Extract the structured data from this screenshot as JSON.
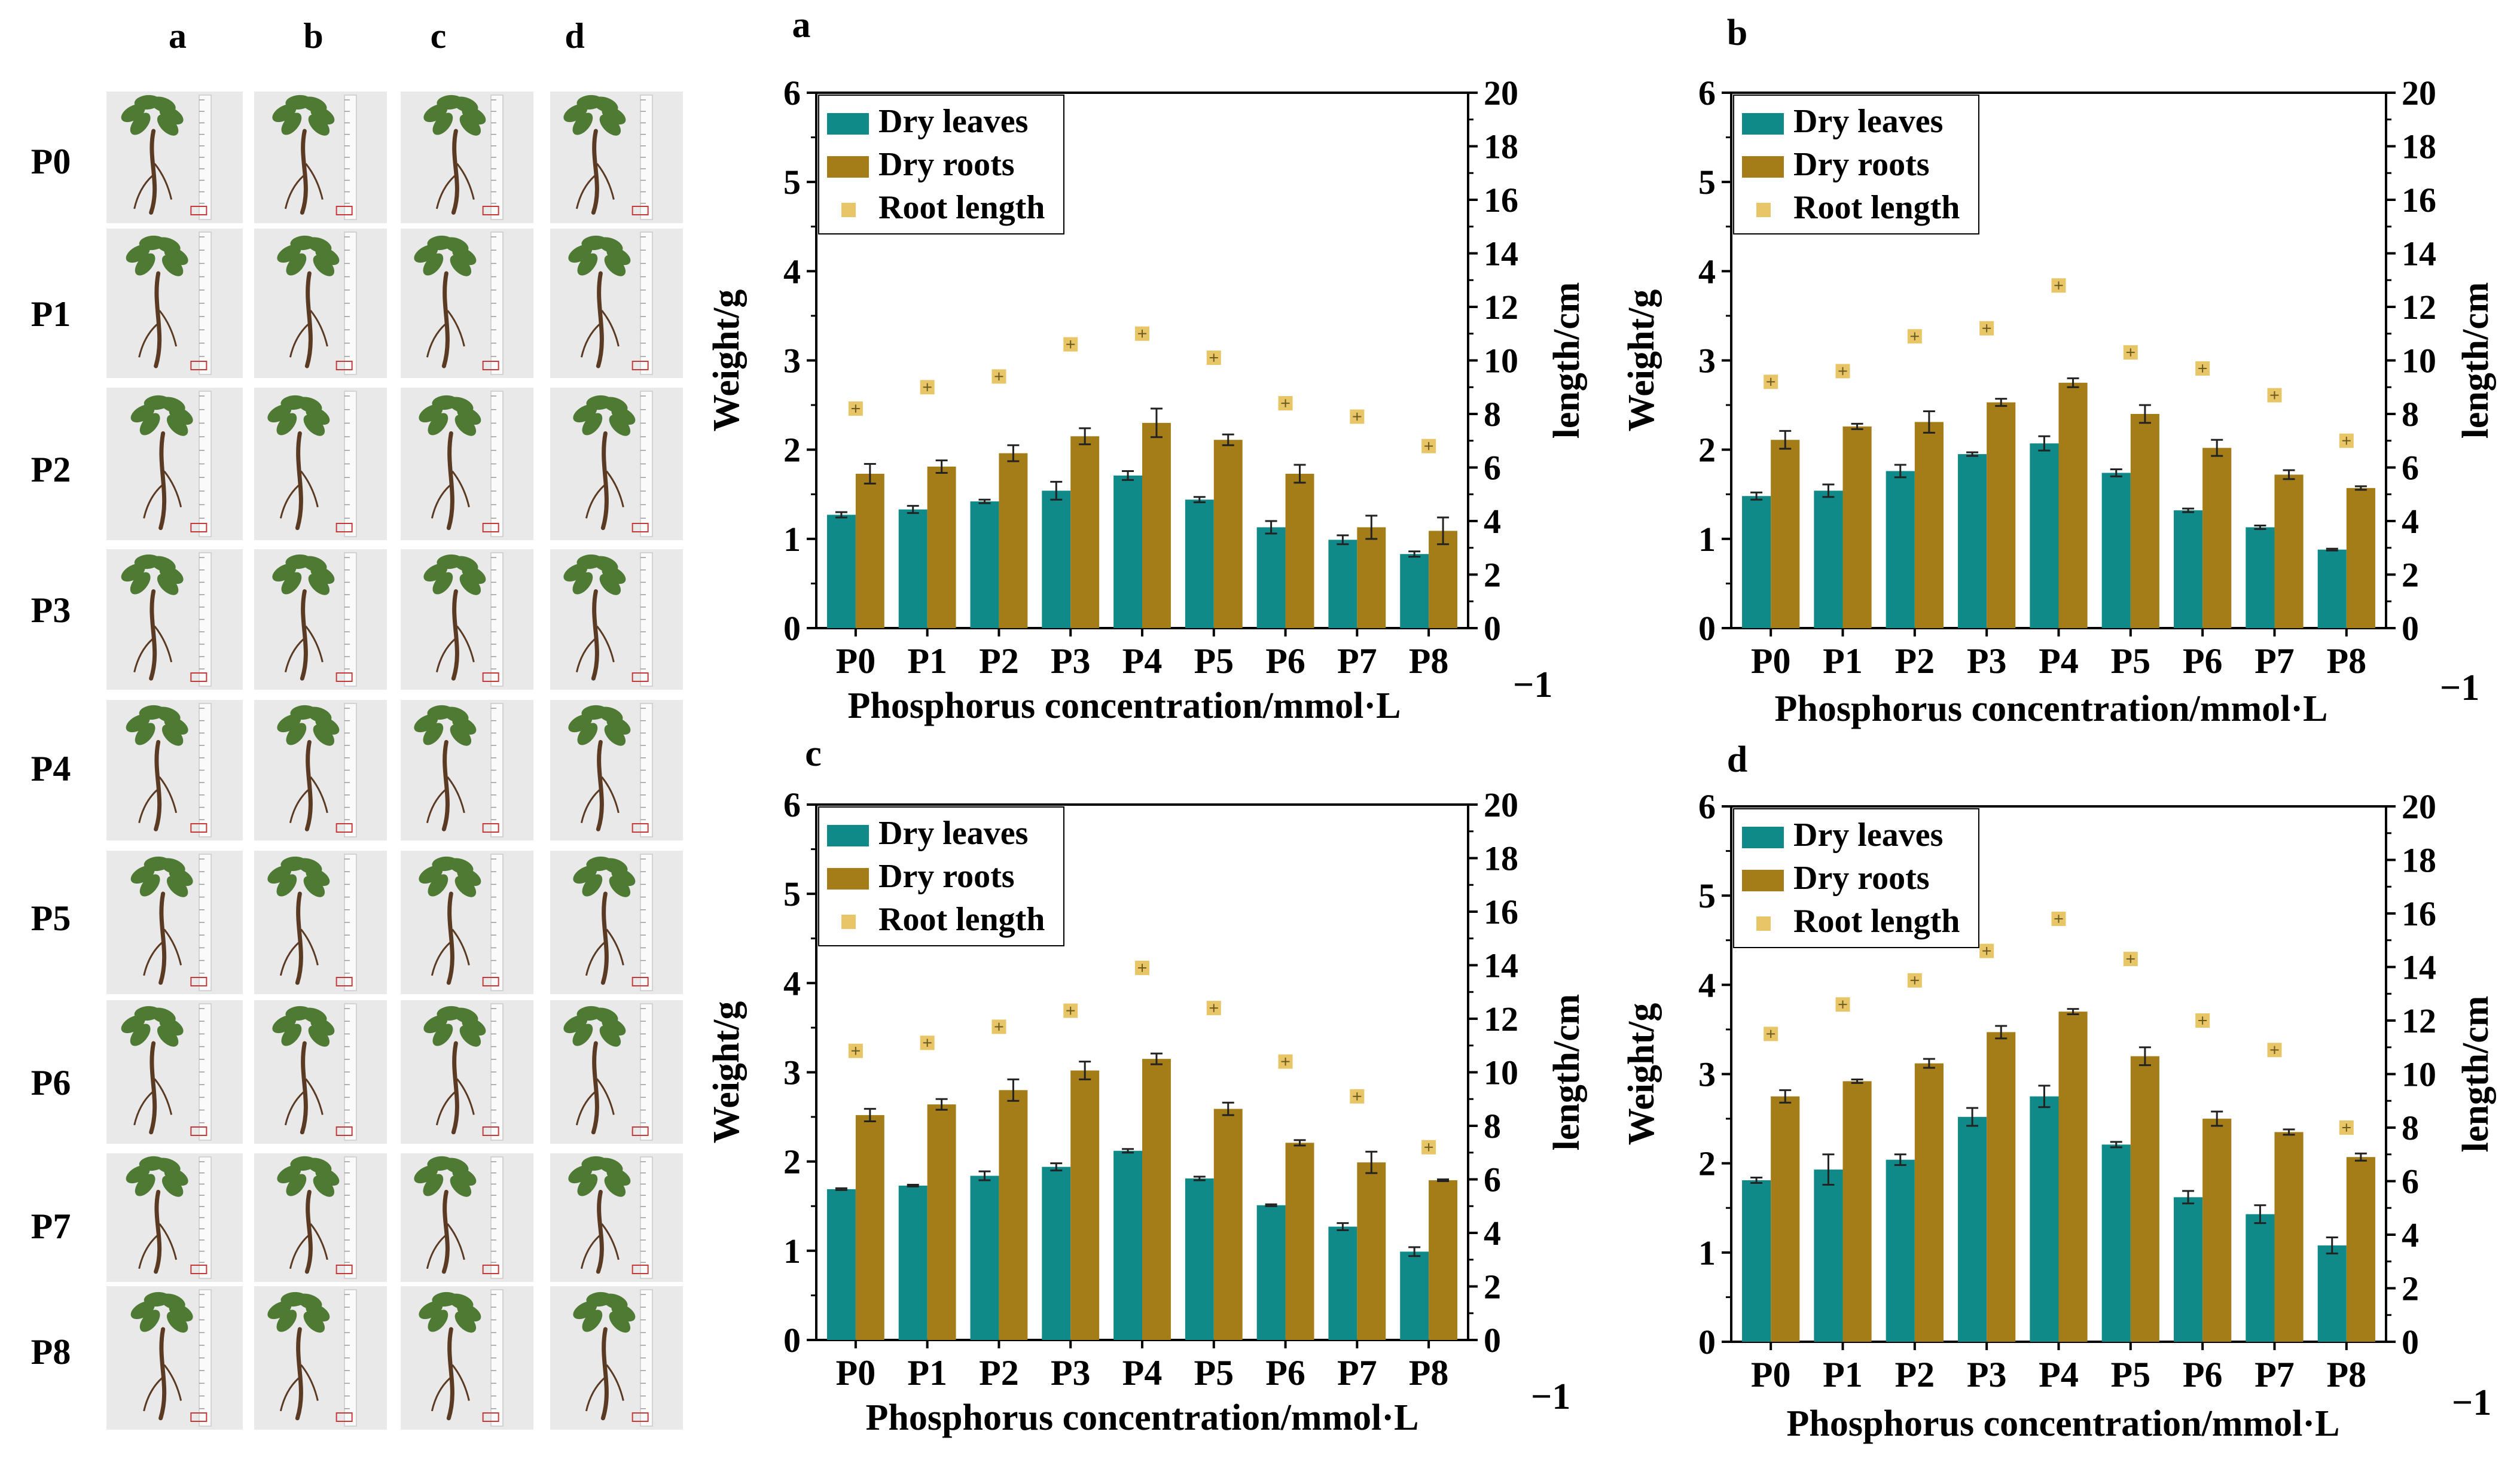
{
  "photo_grid": {
    "column_labels": [
      "a",
      "b",
      "c",
      "d"
    ],
    "row_labels": [
      "P0",
      "P1",
      "P2",
      "P3",
      "P4",
      "P5",
      "P6",
      "P7",
      "P8"
    ]
  },
  "colors": {
    "dry_leaves": "#0f8a88",
    "dry_roots": "#a47c18",
    "root_length": "#e8c668",
    "error_bar": "#222222",
    "photo_bg": "#e9e9ea",
    "stem": "#5a3a22",
    "leaf": "#4f7a34"
  },
  "chart_data": [
    {
      "type": "bar",
      "panel": "a",
      "categories": [
        "P0",
        "P1",
        "P2",
        "P3",
        "P4",
        "P5",
        "P6",
        "P7",
        "P8"
      ],
      "xlabel": "Phosphorus concentration/mmol·L",
      "xlabel_exponent": "−1",
      "ylabel": "Weight/g",
      "ylabel_right": "length/cm",
      "ylim": [
        0,
        6
      ],
      "yticks": [
        "0",
        "1",
        "2",
        "3",
        "4",
        "5",
        "6"
      ],
      "ylim_right": [
        0,
        20
      ],
      "yticks_right": [
        "0",
        "2",
        "4",
        "6",
        "8",
        "10",
        "12",
        "14",
        "16",
        "18",
        "20"
      ],
      "legend": [
        "Dry leaves",
        "Dry roots",
        "Root length"
      ],
      "series": [
        {
          "name": "Dry leaves",
          "axis": "left",
          "values": [
            1.27,
            1.33,
            1.42,
            1.54,
            1.71,
            1.44,
            1.13,
            0.99,
            0.83
          ],
          "errors": [
            0.03,
            0.04,
            0.02,
            0.1,
            0.05,
            0.03,
            0.07,
            0.05,
            0.03
          ]
        },
        {
          "name": "Dry roots",
          "axis": "left",
          "values": [
            1.73,
            1.81,
            1.96,
            2.15,
            2.3,
            2.11,
            1.73,
            1.13,
            1.09
          ],
          "errors": [
            0.11,
            0.07,
            0.09,
            0.09,
            0.16,
            0.06,
            0.1,
            0.13,
            0.15
          ]
        },
        {
          "name": "Root length",
          "axis": "right",
          "values": [
            8.2,
            9.0,
            9.4,
            10.6,
            11.0,
            10.1,
            8.4,
            7.9,
            6.8
          ],
          "errors": [
            0.15,
            0.15,
            0.15,
            0.15,
            0.15,
            0.15,
            0.15,
            0.15,
            0.15
          ]
        }
      ]
    },
    {
      "type": "bar",
      "panel": "b",
      "categories": [
        "P0",
        "P1",
        "P2",
        "P3",
        "P4",
        "P5",
        "P6",
        "P7",
        "P8"
      ],
      "xlabel": "Phosphorus concentration/mmol·L",
      "xlabel_exponent": "−1",
      "ylabel": "Weight/g",
      "ylabel_right": "length/cm",
      "ylim": [
        0,
        6
      ],
      "yticks": [
        "0",
        "1",
        "2",
        "3",
        "4",
        "5",
        "6"
      ],
      "ylim_right": [
        0,
        20
      ],
      "yticks_right": [
        "0",
        "2",
        "4",
        "6",
        "8",
        "10",
        "12",
        "14",
        "16",
        "18",
        "20"
      ],
      "legend": [
        "Dry leaves",
        "Dry roots",
        "Root length"
      ],
      "series": [
        {
          "name": "Dry leaves",
          "axis": "left",
          "values": [
            1.48,
            1.54,
            1.76,
            1.95,
            2.07,
            1.74,
            1.32,
            1.13,
            0.88
          ],
          "errors": [
            0.04,
            0.07,
            0.07,
            0.02,
            0.08,
            0.04,
            0.02,
            0.02,
            0.01
          ]
        },
        {
          "name": "Dry roots",
          "axis": "left",
          "values": [
            2.11,
            2.26,
            2.31,
            2.53,
            2.75,
            2.4,
            2.02,
            1.72,
            1.57
          ],
          "errors": [
            0.1,
            0.03,
            0.12,
            0.04,
            0.05,
            0.1,
            0.09,
            0.05,
            0.02
          ]
        },
        {
          "name": "Root length",
          "axis": "right",
          "values": [
            9.2,
            9.6,
            10.9,
            11.2,
            12.8,
            10.3,
            9.7,
            8.7,
            7.0
          ],
          "errors": [
            0.15,
            0.15,
            0.15,
            0.15,
            0.15,
            0.15,
            0.15,
            0.15,
            0.15
          ]
        }
      ]
    },
    {
      "type": "bar",
      "panel": "c",
      "categories": [
        "P0",
        "P1",
        "P2",
        "P3",
        "P4",
        "P5",
        "P6",
        "P7",
        "P8"
      ],
      "xlabel": "Phosphorus concentration/mmol·L",
      "xlabel_exponent": "−1",
      "ylabel": "Weight/g",
      "ylabel_right": "length/cm",
      "ylim": [
        0,
        6
      ],
      "yticks": [
        "0",
        "1",
        "2",
        "3",
        "4",
        "5",
        "6"
      ],
      "ylim_right": [
        0,
        20
      ],
      "yticks_right": [
        "0",
        "2",
        "4",
        "6",
        "8",
        "10",
        "12",
        "14",
        "16",
        "18",
        "20"
      ],
      "legend": [
        "Dry leaves",
        "Dry roots",
        "Root length"
      ],
      "series": [
        {
          "name": "Dry leaves",
          "axis": "left",
          "values": [
            1.69,
            1.73,
            1.84,
            1.94,
            2.12,
            1.81,
            1.51,
            1.27,
            0.99
          ],
          "errors": [
            0.01,
            0.01,
            0.05,
            0.04,
            0.02,
            0.02,
            0.01,
            0.04,
            0.05
          ]
        },
        {
          "name": "Dry roots",
          "axis": "left",
          "values": [
            2.52,
            2.64,
            2.8,
            3.02,
            3.15,
            2.59,
            2.21,
            1.99,
            1.79
          ],
          "errors": [
            0.07,
            0.06,
            0.12,
            0.1,
            0.06,
            0.07,
            0.03,
            0.12,
            0.01
          ]
        },
        {
          "name": "Root length",
          "axis": "right",
          "values": [
            10.8,
            11.1,
            11.7,
            12.3,
            13.9,
            12.4,
            10.4,
            9.1,
            7.2
          ],
          "errors": [
            0.15,
            0.15,
            0.15,
            0.15,
            0.15,
            0.15,
            0.15,
            0.15,
            0.15
          ]
        }
      ]
    },
    {
      "type": "bar",
      "panel": "d",
      "categories": [
        "P0",
        "P1",
        "P2",
        "P3",
        "P4",
        "P5",
        "P6",
        "P7",
        "P8"
      ],
      "xlabel": "Phosphorus concentration/mmol·L",
      "xlabel_exponent": "−1",
      "ylabel": "Weight/g",
      "ylabel_right": "length/cm",
      "ylim": [
        0,
        6
      ],
      "yticks": [
        "0",
        "1",
        "2",
        "3",
        "4",
        "5",
        "6"
      ],
      "ylim_right": [
        0,
        20
      ],
      "yticks_right": [
        "0",
        "2",
        "4",
        "6",
        "8",
        "10",
        "12",
        "14",
        "16",
        "18",
        "20"
      ],
      "legend": [
        "Dry leaves",
        "Dry roots",
        "Root length"
      ],
      "series": [
        {
          "name": "Dry leaves",
          "axis": "left",
          "values": [
            1.81,
            1.93,
            2.04,
            2.52,
            2.75,
            2.21,
            1.62,
            1.43,
            1.08
          ],
          "errors": [
            0.03,
            0.17,
            0.06,
            0.1,
            0.12,
            0.03,
            0.07,
            0.1,
            0.09
          ]
        },
        {
          "name": "Dry roots",
          "axis": "left",
          "values": [
            2.75,
            2.92,
            3.12,
            3.47,
            3.7,
            3.2,
            2.5,
            2.35,
            2.07
          ],
          "errors": [
            0.07,
            0.02,
            0.05,
            0.07,
            0.03,
            0.1,
            0.08,
            0.03,
            0.04
          ]
        },
        {
          "name": "Root length",
          "axis": "right",
          "values": [
            11.5,
            12.6,
            13.5,
            14.6,
            15.8,
            14.3,
            12.0,
            10.9,
            8.0
          ],
          "errors": [
            0.15,
            0.15,
            0.15,
            0.15,
            0.15,
            0.15,
            0.15,
            0.15,
            0.15
          ]
        }
      ]
    }
  ]
}
